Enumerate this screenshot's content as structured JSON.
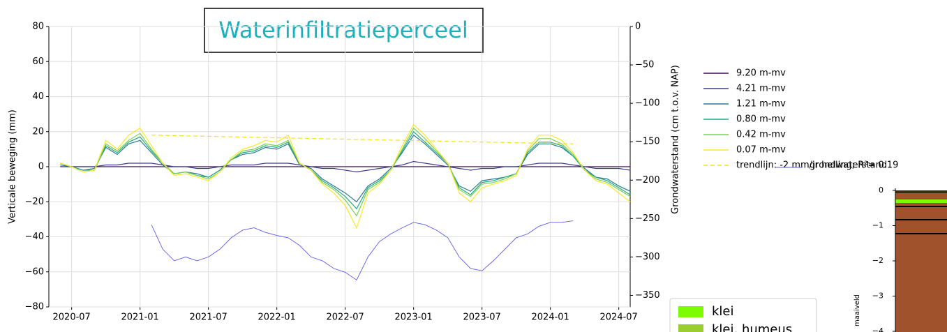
{
  "chart_data": {
    "type": "line",
    "title": "Waterinfiltratieperceel",
    "ylabel": "Verticale beweging (mm)",
    "y2label": "Grondwaterstand (cm t.o.v. NAP)",
    "xlim": [
      "2020-05",
      "2024-08"
    ],
    "xticks": [
      "2020-07",
      "2021-01",
      "2021-07",
      "2022-01",
      "2022-07",
      "2023-01",
      "2023-07",
      "2024-01",
      "2024-07"
    ],
    "ylim": [
      -80,
      80
    ],
    "yticks": [
      {
        "value": -80,
        "label": "−80"
      },
      {
        "value": -60,
        "label": "−60"
      },
      {
        "value": -40,
        "label": "−40"
      },
      {
        "value": -20,
        "label": "−20"
      },
      0,
      20,
      40,
      60,
      80
    ],
    "y2lim": [
      -365,
      0
    ],
    "y2ticks": [
      {
        "value": -350,
        "label": "−350"
      },
      {
        "value": -300,
        "label": "−300"
      },
      {
        "value": -250,
        "label": "−250"
      },
      {
        "value": -200,
        "label": "−200"
      },
      {
        "value": -150,
        "label": "−150"
      },
      {
        "value": -100,
        "label": "−100"
      },
      {
        "value": -50,
        "label": "−50"
      },
      0
    ],
    "grid": true,
    "series": [
      {
        "name": "9.20 m-mv",
        "color": "#3b0f4f",
        "x": [
          "2020-06",
          "2020-07",
          "2020-08",
          "2020-09",
          "2020-10",
          "2020-11",
          "2020-12",
          "2021-01",
          "2021-02",
          "2021-03",
          "2021-04",
          "2021-05",
          "2021-06",
          "2021-07",
          "2021-08",
          "2021-09",
          "2021-10",
          "2021-11",
          "2021-12",
          "2022-01",
          "2022-02",
          "2022-03",
          "2022-04",
          "2022-05",
          "2022-06",
          "2022-07",
          "2022-08",
          "2022-09",
          "2022-10",
          "2022-11",
          "2022-12",
          "2023-01",
          "2023-02",
          "2023-03",
          "2023-04",
          "2023-05",
          "2023-06",
          "2023-07",
          "2023-08",
          "2023-09",
          "2023-10",
          "2023-11",
          "2023-12",
          "2024-01",
          "2024-02",
          "2024-03",
          "2024-04",
          "2024-05",
          "2024-06",
          "2024-07",
          "2024-08"
        ],
        "values": [
          0,
          0,
          0,
          0,
          0,
          0,
          0,
          0,
          0,
          0,
          0,
          0,
          0,
          0,
          0,
          0,
          0,
          0,
          0,
          0,
          0,
          0,
          0,
          0,
          0,
          0,
          0,
          0,
          0,
          0,
          0,
          0,
          0,
          0,
          0,
          0,
          0,
          0,
          0,
          0,
          0,
          0,
          0,
          0,
          0,
          0,
          0,
          0,
          0,
          0,
          0
        ]
      },
      {
        "name": "4.21 m-mv",
        "color": "#3f3f8c",
        "x": [
          "2020-06",
          "2020-07",
          "2020-08",
          "2020-09",
          "2020-10",
          "2020-11",
          "2020-12",
          "2021-01",
          "2021-02",
          "2021-03",
          "2021-04",
          "2021-05",
          "2021-06",
          "2021-07",
          "2021-08",
          "2021-09",
          "2021-10",
          "2021-11",
          "2021-12",
          "2022-01",
          "2022-02",
          "2022-03",
          "2022-04",
          "2022-05",
          "2022-06",
          "2022-07",
          "2022-08",
          "2022-09",
          "2022-10",
          "2022-11",
          "2022-12",
          "2023-01",
          "2023-02",
          "2023-03",
          "2023-04",
          "2023-05",
          "2023-06",
          "2023-07",
          "2023-08",
          "2023-09",
          "2023-10",
          "2023-11",
          "2023-12",
          "2024-01",
          "2024-02",
          "2024-03",
          "2024-04",
          "2024-05",
          "2024-06",
          "2024-07",
          "2024-08"
        ],
        "values": [
          0,
          0,
          0,
          0,
          1,
          1,
          2,
          2,
          2,
          1,
          0,
          0,
          -1,
          -1,
          0,
          1,
          1,
          1,
          2,
          2,
          2,
          1,
          0,
          -1,
          -1,
          -2,
          -3,
          -2,
          -1,
          0,
          1,
          3,
          2,
          1,
          0,
          -1,
          -2,
          -1,
          -1,
          0,
          0,
          1,
          2,
          2,
          2,
          1,
          0,
          -1,
          -1,
          -1,
          -2
        ]
      },
      {
        "name": "1.21 m-mv",
        "color": "#2a7b8e",
        "x": [
          "2020-06",
          "2020-07",
          "2020-08",
          "2020-09",
          "2020-10",
          "2020-11",
          "2020-12",
          "2021-01",
          "2021-02",
          "2021-03",
          "2021-04",
          "2021-05",
          "2021-06",
          "2021-07",
          "2021-08",
          "2021-09",
          "2021-10",
          "2021-11",
          "2021-12",
          "2022-01",
          "2022-02",
          "2022-03",
          "2022-04",
          "2022-05",
          "2022-06",
          "2022-07",
          "2022-08",
          "2022-09",
          "2022-10",
          "2022-11",
          "2022-12",
          "2023-01",
          "2023-02",
          "2023-03",
          "2023-04",
          "2023-05",
          "2023-06",
          "2023-07",
          "2023-08",
          "2023-09",
          "2023-10",
          "2023-11",
          "2023-12",
          "2024-01",
          "2024-02",
          "2024-03",
          "2024-04",
          "2024-05",
          "2024-06",
          "2024-07",
          "2024-08"
        ],
        "values": [
          1,
          0,
          -2,
          -1,
          11,
          7,
          13,
          15,
          8,
          1,
          -4,
          -3,
          -4,
          -6,
          -2,
          4,
          7,
          8,
          11,
          10,
          13,
          1,
          -1,
          -7,
          -11,
          -15,
          -20,
          -11,
          -7,
          -1,
          8,
          18,
          13,
          7,
          1,
          -11,
          -14,
          -8,
          -7,
          -6,
          -4,
          7,
          13,
          13,
          11,
          6,
          -1,
          -6,
          -7,
          -11,
          -14
        ]
      },
      {
        "name": "0.80 m-mv",
        "color": "#23a883",
        "x": [
          "2020-06",
          "2020-07",
          "2020-08",
          "2020-09",
          "2020-10",
          "2020-11",
          "2020-12",
          "2021-01",
          "2021-02",
          "2021-03",
          "2021-04",
          "2021-05",
          "2021-06",
          "2021-07",
          "2021-08",
          "2021-09",
          "2021-10",
          "2021-11",
          "2021-12",
          "2022-01",
          "2022-02",
          "2022-03",
          "2022-04",
          "2022-05",
          "2022-06",
          "2022-07",
          "2022-08",
          "2022-09",
          "2022-10",
          "2022-11",
          "2022-12",
          "2023-01",
          "2023-02",
          "2023-03",
          "2023-04",
          "2023-05",
          "2023-06",
          "2023-07",
          "2023-08",
          "2023-09",
          "2023-10",
          "2023-11",
          "2023-12",
          "2024-01",
          "2024-02",
          "2024-03",
          "2024-04",
          "2024-05",
          "2024-06",
          "2024-07",
          "2024-08"
        ],
        "values": [
          2,
          0,
          -2,
          -2,
          12,
          8,
          14,
          17,
          9,
          2,
          -4,
          -3,
          -5,
          -6,
          -2,
          4,
          8,
          9,
          12,
          11,
          14,
          2,
          -2,
          -8,
          -12,
          -17,
          -24,
          -12,
          -8,
          -2,
          9,
          20,
          14,
          8,
          2,
          -12,
          -16,
          -9,
          -8,
          -6,
          -4,
          8,
          14,
          14,
          12,
          6,
          -2,
          -6,
          -8,
          -12,
          -16
        ]
      },
      {
        "name": "0.42 m-mv",
        "color": "#7ad151",
        "x": [
          "2020-06",
          "2020-07",
          "2020-08",
          "2020-09",
          "2020-10",
          "2020-11",
          "2020-12",
          "2021-01",
          "2021-02",
          "2021-03",
          "2021-04",
          "2021-05",
          "2021-06",
          "2021-07",
          "2021-08",
          "2021-09",
          "2021-10",
          "2021-11",
          "2021-12",
          "2022-01",
          "2022-02",
          "2022-03",
          "2022-04",
          "2022-05",
          "2022-06",
          "2022-07",
          "2022-08",
          "2022-09",
          "2022-10",
          "2022-11",
          "2022-12",
          "2023-01",
          "2023-02",
          "2023-03",
          "2023-04",
          "2023-05",
          "2023-06",
          "2023-07",
          "2023-08",
          "2023-09",
          "2023-10",
          "2023-11",
          "2023-12",
          "2024-01",
          "2024-02",
          "2024-03",
          "2024-04",
          "2024-05",
          "2024-06",
          "2024-07",
          "2024-08"
        ],
        "values": [
          2,
          0,
          -3,
          -2,
          13,
          9,
          15,
          19,
          10,
          2,
          -4,
          -3,
          -5,
          -7,
          -3,
          4,
          9,
          10,
          13,
          12,
          15,
          2,
          -2,
          -9,
          -13,
          -19,
          -28,
          -13,
          -9,
          -2,
          10,
          22,
          16,
          9,
          2,
          -13,
          -17,
          -10,
          -9,
          -7,
          -4,
          9,
          16,
          16,
          13,
          7,
          -2,
          -7,
          -9,
          -13,
          -17
        ]
      },
      {
        "name": "0.07 m-mv",
        "color": "#fde725",
        "x": [
          "2020-06",
          "2020-07",
          "2020-08",
          "2020-09",
          "2020-10",
          "2020-11",
          "2020-12",
          "2021-01",
          "2021-02",
          "2021-03",
          "2021-04",
          "2021-05",
          "2021-06",
          "2021-07",
          "2021-08",
          "2021-09",
          "2021-10",
          "2021-11",
          "2021-12",
          "2022-01",
          "2022-02",
          "2022-03",
          "2022-04",
          "2022-05",
          "2022-06",
          "2022-07",
          "2022-08",
          "2022-09",
          "2022-10",
          "2022-11",
          "2022-12",
          "2023-01",
          "2023-02",
          "2023-03",
          "2023-04",
          "2023-05",
          "2023-06",
          "2023-07",
          "2023-08",
          "2023-09",
          "2023-10",
          "2023-11",
          "2023-12",
          "2024-01",
          "2024-02",
          "2024-03",
          "2024-04",
          "2024-05",
          "2024-06",
          "2024-07",
          "2024-08"
        ],
        "values": [
          2,
          0,
          -3,
          -2,
          15,
          10,
          18,
          22,
          12,
          2,
          -5,
          -4,
          -6,
          -8,
          -3,
          5,
          10,
          12,
          15,
          14,
          18,
          2,
          -2,
          -10,
          -15,
          -22,
          -35,
          -15,
          -10,
          -2,
          12,
          24,
          18,
          10,
          2,
          -15,
          -20,
          -12,
          -10,
          -8,
          -5,
          10,
          18,
          18,
          15,
          8,
          -2,
          -8,
          -10,
          -15,
          -20
        ]
      },
      {
        "name": "trendlijn: -2 mm/jr helling; R²= 0.19",
        "color": "#f5e11a",
        "dashed": true,
        "x": [
          "2021-02",
          "2024-03"
        ],
        "values": [
          18,
          13
        ]
      },
      {
        "name": "grondwaterstand",
        "color": "#5a5aee",
        "axis": "y2",
        "x": [
          "2021-02",
          "2021-03",
          "2021-04",
          "2021-05",
          "2021-06",
          "2021-07",
          "2021-08",
          "2021-09",
          "2021-10",
          "2021-11",
          "2021-12",
          "2022-01",
          "2022-02",
          "2022-03",
          "2022-04",
          "2022-05",
          "2022-06",
          "2022-07",
          "2022-08",
          "2022-09",
          "2022-10",
          "2022-11",
          "2022-12",
          "2023-01",
          "2023-02",
          "2023-03",
          "2023-04",
          "2023-05",
          "2023-06",
          "2023-07",
          "2023-08",
          "2023-09",
          "2023-10",
          "2023-11",
          "2023-12",
          "2024-01",
          "2024-02",
          "2024-03"
        ],
        "values": [
          -258,
          -290,
          -305,
          -300,
          -305,
          -300,
          -290,
          -275,
          -265,
          -262,
          -268,
          -272,
          -275,
          -285,
          -300,
          -305,
          -315,
          -320,
          -330,
          -300,
          -280,
          -270,
          -262,
          -255,
          -258,
          -265,
          -275,
          -300,
          -315,
          -318,
          -305,
          -290,
          -275,
          -270,
          -260,
          -255,
          -255,
          -253
        ]
      }
    ]
  },
  "inset": {
    "ylabel": "maaiveld",
    "yticks": [
      0,
      {
        "value": -1,
        "label": "−1"
      },
      {
        "value": -2,
        "label": "−2"
      },
      {
        "value": -3,
        "label": "−3"
      },
      {
        "value": -4,
        "label": "−4"
      }
    ],
    "legend": [
      {
        "name": "klei",
        "color": "#7cfc00"
      },
      {
        "name": "klei, humeus",
        "color": "#9acd32"
      }
    ]
  }
}
